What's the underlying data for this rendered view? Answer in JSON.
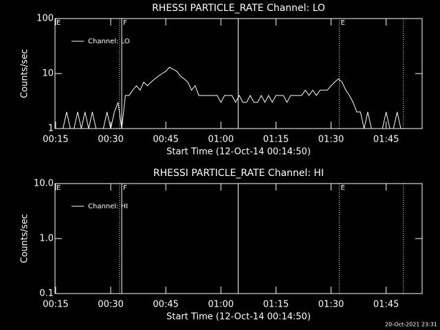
{
  "chart_data": [
    {
      "type": "line",
      "title": "RHESSI PARTICLE_RATE Channel: LO",
      "xlabel": "Start Time (12-Oct-14 00:14:50)",
      "ylabel": "Counts/sec",
      "log_y": true,
      "ylim": [
        1,
        100
      ],
      "yticks": [
        1,
        10,
        100
      ],
      "xlim": [
        14.83,
        114.8
      ],
      "xticks": [
        {
          "value": 15,
          "label": "00:15"
        },
        {
          "value": 30,
          "label": "00:30"
        },
        {
          "value": 45,
          "label": "00:45"
        },
        {
          "value": 60,
          "label": "01:00"
        },
        {
          "value": 75,
          "label": "01:15"
        },
        {
          "value": 90,
          "label": "01:30"
        },
        {
          "value": 105,
          "label": "01:45"
        }
      ],
      "x": [
        15,
        16,
        17,
        18,
        19,
        20,
        21,
        22,
        23,
        24,
        25,
        26,
        27,
        28,
        29,
        30,
        31,
        32,
        33,
        34,
        35,
        36,
        37,
        38,
        39,
        40,
        41,
        42,
        43,
        44,
        45,
        46,
        47,
        48,
        49,
        50,
        51,
        52,
        53,
        54,
        55,
        56,
        57,
        58,
        59,
        60,
        61,
        62,
        63,
        64,
        65,
        66,
        67,
        68,
        69,
        70,
        71,
        72,
        73,
        74,
        75,
        76,
        77,
        78,
        79,
        80,
        81,
        82,
        83,
        84,
        85,
        86,
        87,
        88,
        89,
        90,
        91,
        92,
        93,
        94,
        95,
        96,
        97,
        98,
        99,
        100,
        101,
        102,
        103,
        104,
        105,
        106,
        107,
        108,
        109,
        110,
        111,
        112
      ],
      "series": [
        {
          "name": "Channel: LO",
          "color": "#ffffff",
          "values": [
            1,
            1,
            1,
            2,
            1,
            1,
            2,
            1,
            2,
            1,
            2,
            1,
            1,
            1,
            2,
            1,
            2,
            3,
            1,
            4,
            4,
            5,
            6,
            5,
            7,
            6,
            7,
            8,
            9,
            10,
            11,
            13,
            12,
            11,
            9,
            8,
            7,
            5,
            6,
            4,
            4,
            4,
            4,
            4,
            4,
            3,
            4,
            4,
            4,
            3,
            4,
            3,
            3,
            4,
            3,
            3,
            4,
            3,
            4,
            3,
            4,
            4,
            4,
            3,
            4,
            4,
            4,
            4,
            5,
            4,
            5,
            4,
            5,
            5,
            5,
            6,
            7,
            8,
            7,
            5,
            4,
            3,
            2,
            2,
            1,
            2,
            1,
            1,
            1,
            1,
            2,
            1,
            1,
            2,
            1,
            1,
            1,
            1
          ]
        }
      ],
      "vlines": [
        {
          "x": 32.4,
          "style": "dotted"
        },
        {
          "x": 33.0,
          "style": "solid"
        },
        {
          "x": 64.7,
          "style": "solid"
        },
        {
          "x": 92.25,
          "style": "dotted"
        },
        {
          "x": 109.7,
          "style": "dotted"
        }
      ],
      "flags": [
        {
          "text": "E",
          "x": 14.83
        },
        {
          "text": "F",
          "x": 33.0
        },
        {
          "text": "E",
          "x": 92.25
        }
      ]
    },
    {
      "type": "line",
      "title": "RHESSI PARTICLE_RATE Channel: HI",
      "xlabel": "Start Time (12-Oct-14 00:14:50)",
      "ylabel": "Counts/sec",
      "log_y": true,
      "ylim": [
        0.1,
        10
      ],
      "yticks": [
        0.1,
        {
          "value": 1,
          "label": "1.0"
        },
        {
          "value": 10,
          "label": "10.0"
        }
      ],
      "xlim": [
        14.83,
        114.8
      ],
      "xticks": [
        {
          "value": 15,
          "label": "00:15"
        },
        {
          "value": 30,
          "label": "00:30"
        },
        {
          "value": 45,
          "label": "00:45"
        },
        {
          "value": 60,
          "label": "01:00"
        },
        {
          "value": 75,
          "label": "01:15"
        },
        {
          "value": 90,
          "label": "01:30"
        },
        {
          "value": 105,
          "label": "01:45"
        }
      ],
      "x": [],
      "series": [
        {
          "name": "Channel: HI",
          "color": "#ffffff",
          "values": []
        }
      ],
      "vlines": [
        {
          "x": 32.4,
          "style": "dotted"
        },
        {
          "x": 33.0,
          "style": "solid"
        },
        {
          "x": 64.7,
          "style": "solid"
        },
        {
          "x": 92.25,
          "style": "dotted"
        },
        {
          "x": 109.7,
          "style": "dotted"
        }
      ],
      "flags": [
        {
          "text": "E",
          "x": 14.83
        },
        {
          "text": "F",
          "x": 33.0
        },
        {
          "text": "E",
          "x": 92.25
        }
      ]
    }
  ],
  "footer": "20-Oct-2021 23:31"
}
